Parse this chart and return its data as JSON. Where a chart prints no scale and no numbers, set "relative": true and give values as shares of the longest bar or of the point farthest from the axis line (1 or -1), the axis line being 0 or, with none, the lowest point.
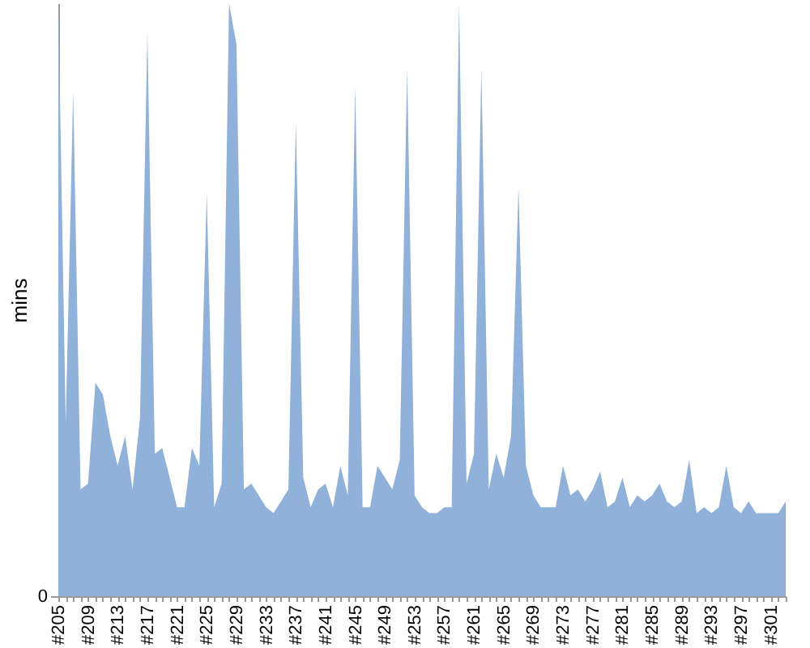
{
  "chart_data": {
    "type": "area",
    "ylabel": "mins",
    "relative": true,
    "annotations": [
      "0"
    ],
    "categories": [
      "#205",
      null,
      null,
      null,
      "#209",
      null,
      null,
      null,
      "#213",
      null,
      null,
      null,
      "#217",
      null,
      null,
      null,
      "#221",
      null,
      null,
      null,
      "#225",
      null,
      null,
      null,
      "#229",
      null,
      null,
      null,
      "#233",
      null,
      null,
      null,
      "#237",
      null,
      null,
      null,
      "#241",
      null,
      null,
      null,
      "#245",
      null,
      null,
      null,
      "#249",
      null,
      null,
      null,
      "#253",
      null,
      null,
      null,
      "#257",
      null,
      null,
      null,
      "#261",
      null,
      null,
      null,
      "#265",
      null,
      null,
      null,
      "#269",
      null,
      null,
      null,
      "#273",
      null,
      null,
      null,
      "#277",
      null,
      null,
      null,
      "#281",
      null,
      null,
      null,
      "#285",
      null,
      null,
      null,
      "#289",
      null,
      null,
      null,
      "#293",
      null,
      null,
      null,
      "#297",
      null,
      null,
      null,
      "#301",
      null,
      null
    ],
    "series": [
      {
        "color": "#8fb1da",
        "values": [
          1.0,
          0.29,
          0.85,
          0.18,
          0.19,
          0.36,
          0.34,
          0.27,
          0.22,
          0.27,
          0.18,
          0.3,
          0.95,
          0.24,
          0.25,
          0.2,
          0.15,
          0.15,
          0.25,
          0.22,
          0.68,
          0.15,
          0.19,
          1.0,
          0.93,
          0.18,
          0.19,
          0.17,
          0.15,
          0.14,
          0.16,
          0.18,
          0.8,
          0.2,
          0.15,
          0.18,
          0.19,
          0.15,
          0.22,
          0.17,
          0.86,
          0.15,
          0.15,
          0.22,
          0.2,
          0.18,
          0.23,
          0.89,
          0.17,
          0.15,
          0.14,
          0.14,
          0.15,
          0.15,
          1.0,
          0.19,
          0.24,
          0.89,
          0.18,
          0.24,
          0.2,
          0.27,
          0.69,
          0.22,
          0.17,
          0.15,
          0.15,
          0.15,
          0.22,
          0.17,
          0.18,
          0.16,
          0.18,
          0.21,
          0.15,
          0.16,
          0.2,
          0.15,
          0.17,
          0.16,
          0.17,
          0.19,
          0.16,
          0.15,
          0.16,
          0.23,
          0.14,
          0.15,
          0.14,
          0.15,
          0.22,
          0.15,
          0.14,
          0.16,
          0.14,
          0.14,
          0.14,
          0.14,
          0.16
        ]
      }
    ]
  }
}
